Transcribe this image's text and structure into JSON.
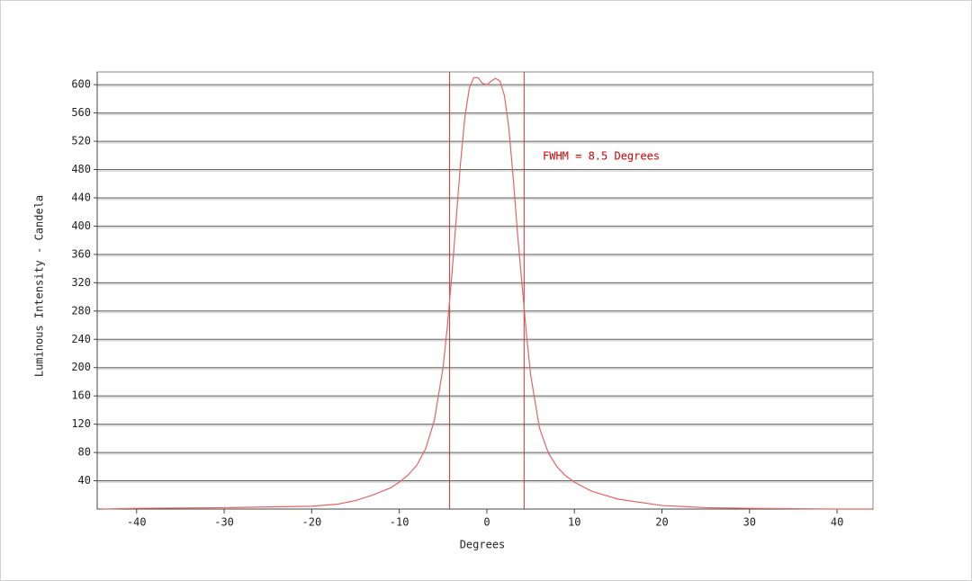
{
  "chart_data": {
    "type": "line",
    "x_label": "Degrees",
    "y_label": "Luminous Intensity - Candela",
    "annotation": "FWHM =  8.5 Degrees",
    "xlim": [
      -44.5,
      44.1
    ],
    "ylim": [
      0,
      618
    ],
    "xticks": [
      -40,
      -30,
      -20,
      -10,
      0,
      10,
      20,
      30,
      40
    ],
    "yticks": [
      40,
      80,
      120,
      160,
      200,
      240,
      280,
      320,
      360,
      400,
      440,
      480,
      520,
      560,
      600
    ],
    "grid": true,
    "vlines": [
      -4.25,
      4.25
    ],
    "x": [
      -44,
      -40,
      -30,
      -20,
      -17,
      -15,
      -13,
      -11,
      -10,
      -9,
      -8,
      -7,
      -6,
      -5,
      -4.5,
      -4,
      -3.5,
      -3,
      -2.5,
      -2,
      -1.5,
      -1,
      -0.5,
      0,
      0.5,
      1,
      1.5,
      2,
      2.5,
      3,
      3.5,
      4,
      4.5,
      5,
      6,
      7,
      8,
      9,
      10,
      12,
      15,
      20,
      25,
      30,
      40,
      44
    ],
    "series": [
      {
        "color": "#e06666",
        "values": [
          0,
          1,
          2,
          4,
          7,
          12,
          20,
          30,
          38,
          48,
          62,
          85,
          125,
          200,
          260,
          330,
          410,
          490,
          555,
          595,
          610,
          610,
          602,
          600,
          605,
          609,
          605,
          585,
          540,
          470,
          390,
          320,
          250,
          190,
          115,
          80,
          60,
          47,
          38,
          25,
          14,
          5,
          2,
          1,
          0,
          0
        ]
      }
    ]
  }
}
